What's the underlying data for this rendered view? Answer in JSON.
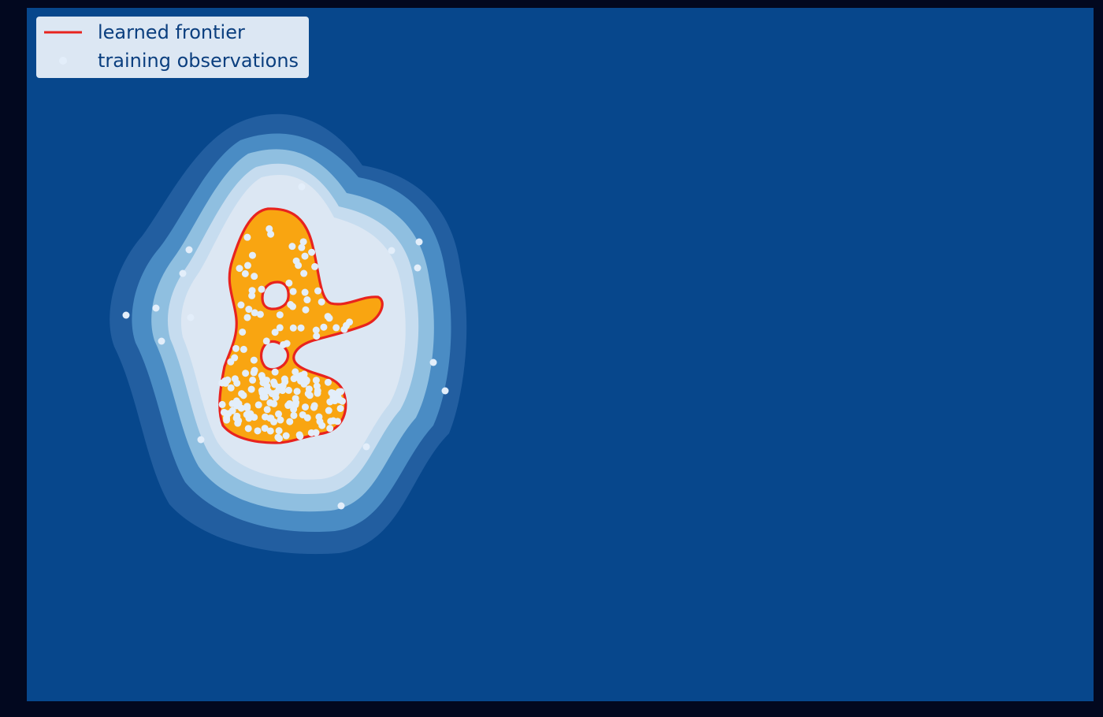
{
  "chart_data": {
    "type": "contour",
    "title": "",
    "xlabel": "",
    "ylabel": "",
    "grid": false,
    "legend_position": "top-left",
    "legend": [
      {
        "label": "learned frontier",
        "marker": "line",
        "color": "#e8231e"
      },
      {
        "label": "training observations",
        "marker": "point",
        "color": "#e3eefa"
      }
    ],
    "colors": {
      "figure_background": "#02081f",
      "outside_level": "#07478c",
      "levels": [
        "#225ea0",
        "#4a8cc4",
        "#8fbfe0",
        "#c6dcef",
        "#dce7f3"
      ],
      "inlier_region": "#f9a511",
      "frontier": "#e8231e",
      "observations": "#e3eefa",
      "legend_text": "#0b3f7f",
      "legend_box": "#dce7f3"
    },
    "observations": {
      "inliers_approx_count": 190,
      "outliers": [
        [
          160,
          400
        ],
        [
          198,
          391
        ],
        [
          205,
          433
        ],
        [
          240,
          317
        ],
        [
          232,
          347
        ],
        [
          242,
          403
        ],
        [
          532,
          307
        ],
        [
          530,
          340
        ],
        [
          550,
          460
        ],
        [
          565,
          496
        ],
        [
          433,
          642
        ],
        [
          465,
          567
        ],
        [
          255,
          558
        ],
        [
          383,
          237
        ],
        [
          497,
          318
        ]
      ]
    }
  }
}
